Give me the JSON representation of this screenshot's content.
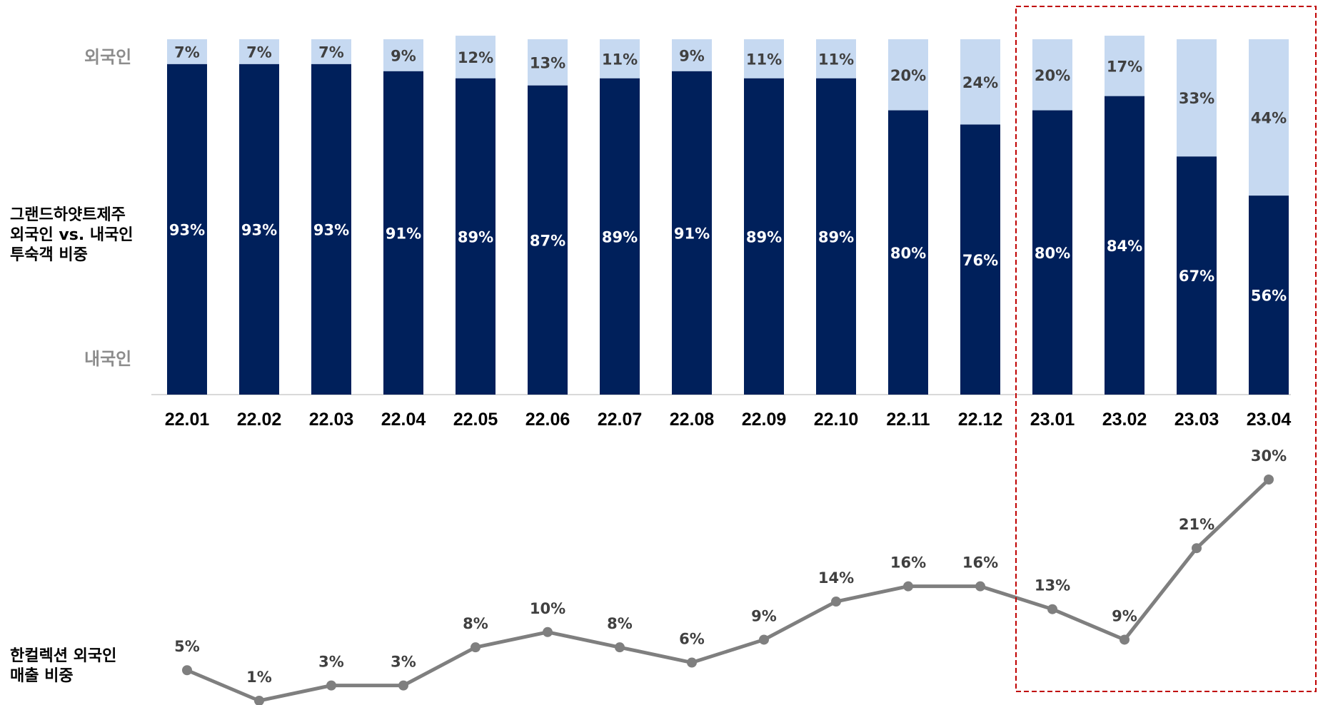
{
  "chart_data": [
    {
      "type": "bar",
      "stacked": true,
      "percent_stacked": true,
      "title": "그랜드하얏트제주 외국인 vs. 내국인 투숙객 비중",
      "title_lines": [
        "그랜드하얏트제주",
        "외국인 vs. 내국인",
        "투숙객 비중"
      ],
      "top_series_label": "외국인",
      "bottom_series_label": "내국인",
      "categories": [
        "22.01",
        "22.02",
        "22.03",
        "22.04",
        "22.05",
        "22.06",
        "22.07",
        "22.08",
        "22.09",
        "22.10",
        "22.11",
        "22.12",
        "23.01",
        "23.02",
        "23.03",
        "23.04"
      ],
      "series": [
        {
          "name": "내국인",
          "color": "#00205b",
          "values": [
            93,
            93,
            93,
            91,
            89,
            87,
            89,
            91,
            89,
            89,
            80,
            76,
            80,
            84,
            67,
            56
          ],
          "labels": [
            "93%",
            "93%",
            "93%",
            "91%",
            "89%",
            "87%",
            "89%",
            "91%",
            "89%",
            "89%",
            "80%",
            "76%",
            "80%",
            "84%",
            "67%",
            "56%"
          ]
        },
        {
          "name": "외국인",
          "color": "#c6d9f1",
          "values": [
            7,
            7,
            7,
            9,
            12,
            13,
            11,
            9,
            11,
            11,
            20,
            24,
            20,
            17,
            33,
            44
          ],
          "labels": [
            "7%",
            "7%",
            "7%",
            "9%",
            "12%",
            "13%",
            "11%",
            "9%",
            "11%",
            "11%",
            "20%",
            "24%",
            "20%",
            "17%",
            "33%",
            "44%"
          ]
        }
      ],
      "ylim": [
        0,
        100
      ]
    },
    {
      "type": "line",
      "title": "한컬렉션 외국인 매출 비중",
      "title_lines": [
        "한컬렉션 외국인",
        "매출 비중"
      ],
      "categories": [
        "22.01",
        "22.02",
        "22.03",
        "22.04",
        "22.05",
        "22.06",
        "22.07",
        "22.08",
        "22.09",
        "22.10",
        "22.11",
        "22.12",
        "23.01",
        "23.02",
        "23.03",
        "23.04"
      ],
      "series": [
        {
          "name": "",
          "color": "#7f7f7f",
          "values": [
            5,
            1,
            3,
            3,
            8,
            10,
            8,
            6,
            9,
            14,
            16,
            16,
            13,
            9,
            21,
            30
          ],
          "labels": [
            "5%",
            "1%",
            "3%",
            "3%",
            "8%",
            "10%",
            "8%",
            "6%",
            "9%",
            "14%",
            "16%",
            "16%",
            "13%",
            "9%",
            "21%",
            "30%"
          ]
        }
      ],
      "ylim": [
        1,
        30
      ]
    }
  ],
  "highlight": {
    "from": "23.01",
    "to": "23.04",
    "color": "#c00000"
  }
}
